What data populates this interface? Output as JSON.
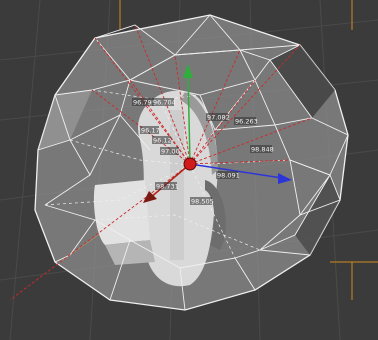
{
  "viewport": {
    "name": "3D editor viewport",
    "background": "#3b3b3b",
    "grid_color": "#4a4a4a",
    "hull_color": "#f0f0f0",
    "ray_color": "#cc2b2b",
    "axes": {
      "x_color": "#2c36d8",
      "y_color": "#2fae3c",
      "z_color": "#b81f12"
    },
    "distance_labels": [
      "96.799",
      "96.704",
      "97.082",
      "96.263",
      "98.848",
      "98.091",
      "98.505",
      "98.731",
      "96.17",
      "96.12",
      "97.00"
    ]
  }
}
